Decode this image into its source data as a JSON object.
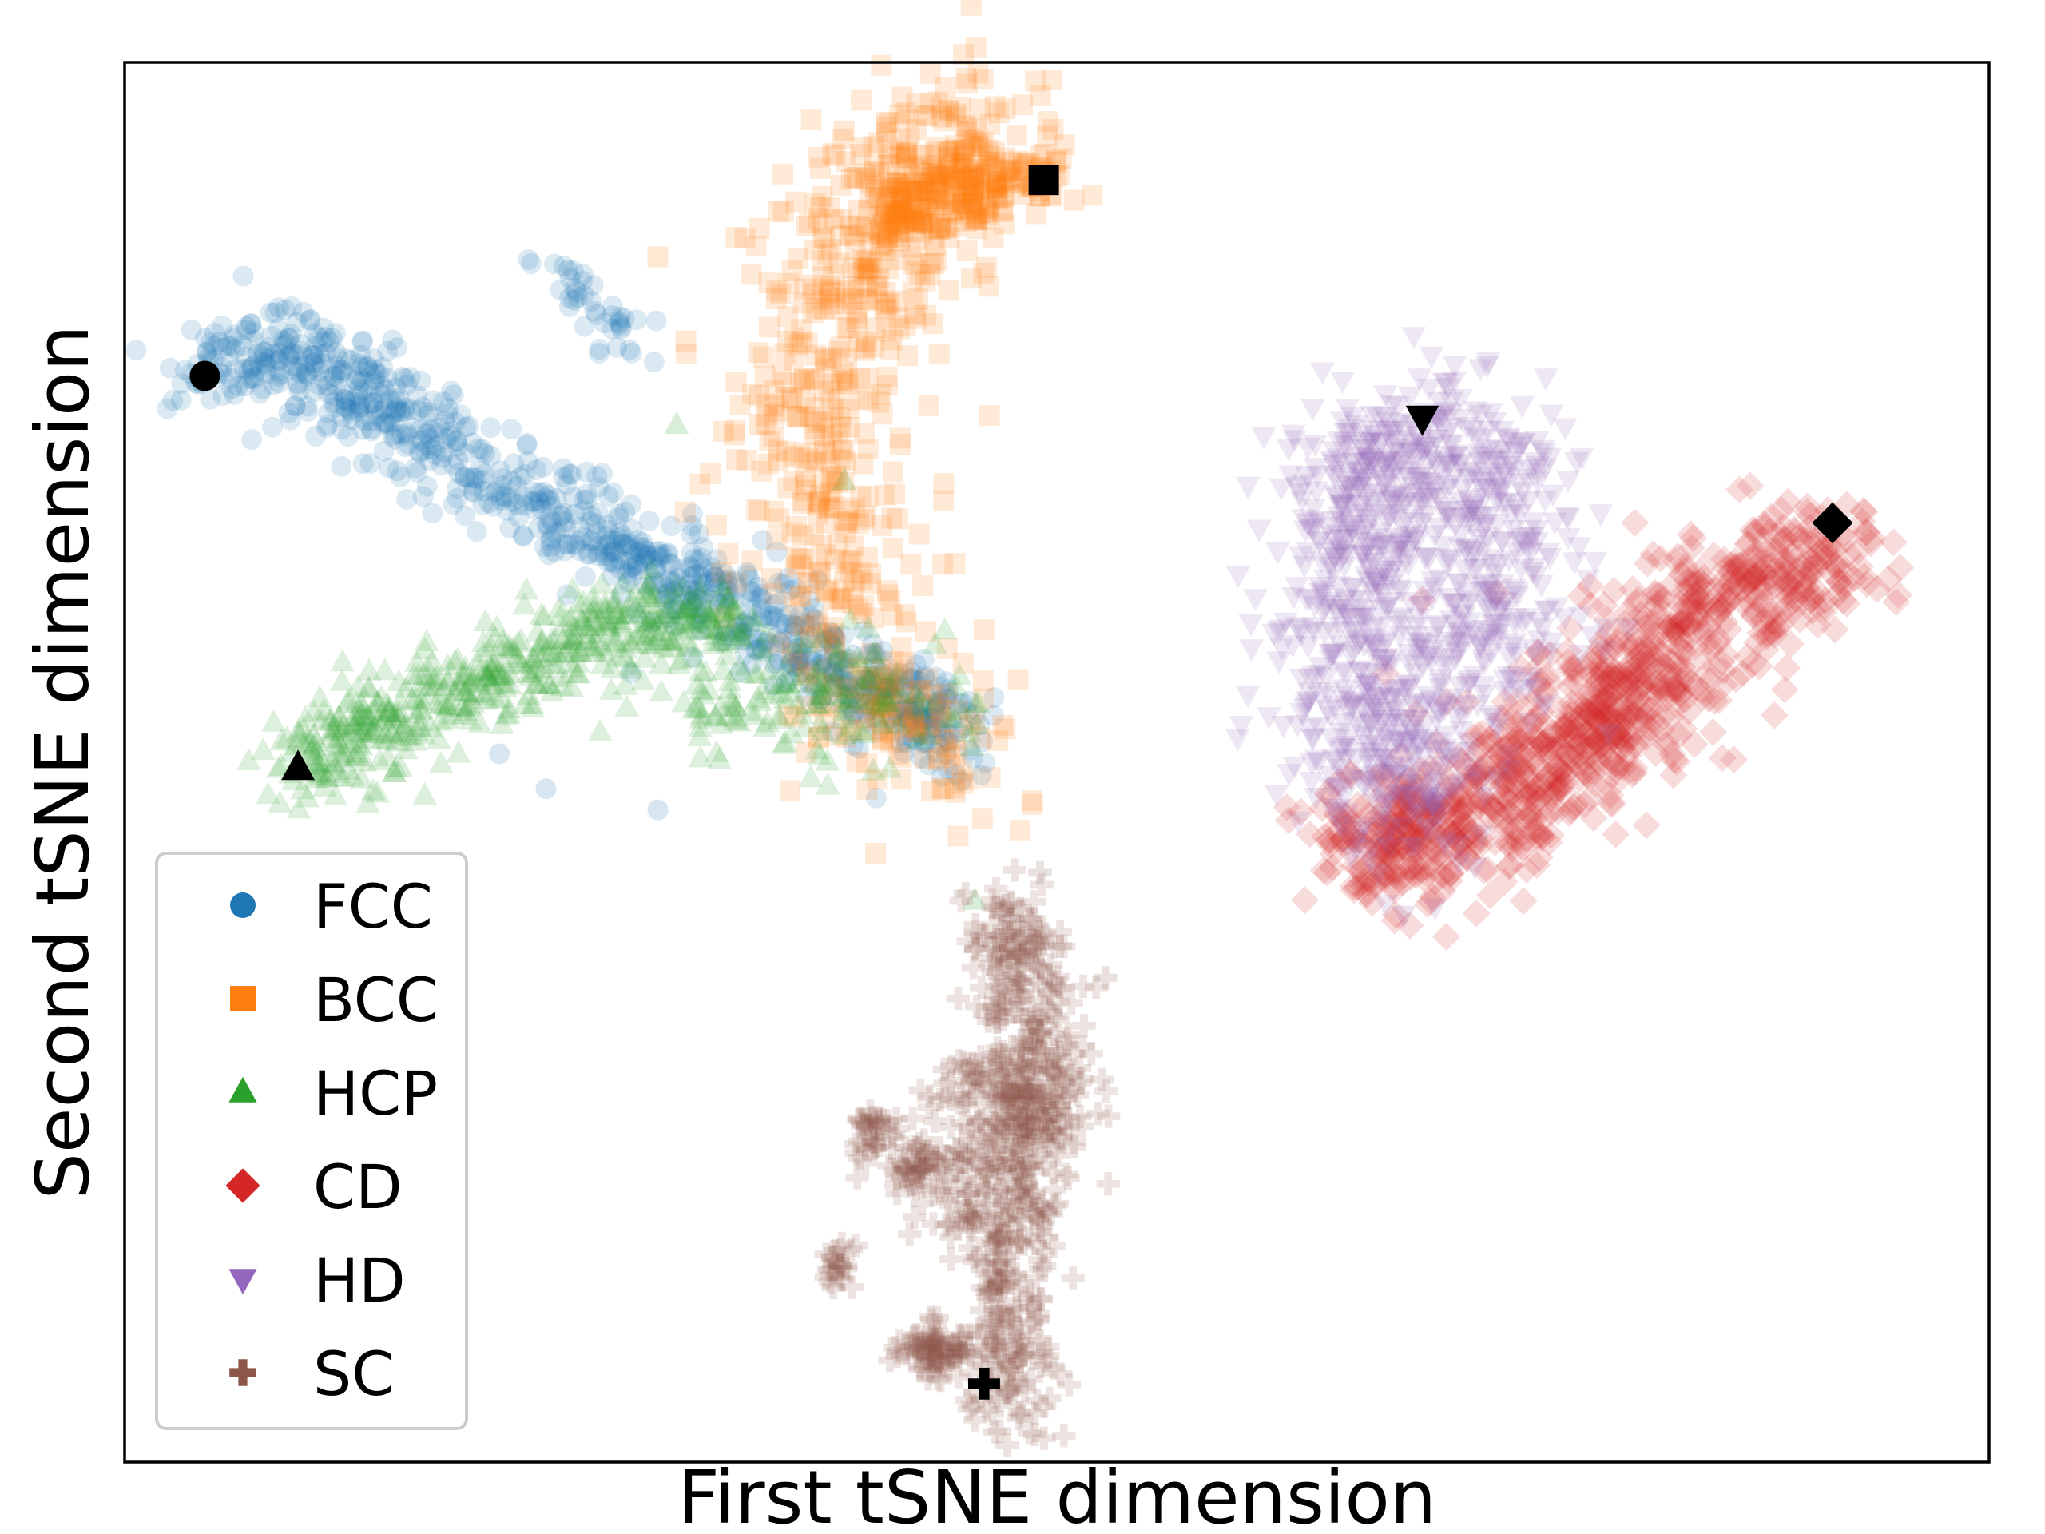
{
  "chart_data": {
    "type": "scatter",
    "title": "",
    "xlabel": "First tSNE dimension",
    "ylabel": "Second tSNE dimension",
    "xlim": [
      0,
      100
    ],
    "ylim": [
      0,
      100
    ],
    "x_ticks_visible": false,
    "y_ticks_visible": false,
    "grid": false,
    "legend_position": "lower-left",
    "series": [
      {
        "name": "FCC",
        "marker": "circle",
        "color": "#1f77b4",
        "clusters": [
          {
            "points": [
              [
                4.3,
                77.6
              ],
              [
                8.3,
                80.6
              ],
              [
                12.1,
                76.6
              ],
              [
                17.6,
                72.6
              ],
              [
                22.6,
                68.1
              ],
              [
                27.6,
                64.6
              ],
              [
                32.4,
                61.1
              ],
              [
                37.4,
                57.6
              ],
              [
                41.6,
                54.1
              ],
              [
                44.3,
                51.6
              ]
            ],
            "spread": 1.6,
            "count": 900
          },
          {
            "points": [
              [
                22.6,
                86.1
              ],
              [
                25.1,
                82.6
              ],
              [
                27.6,
                79.6
              ]
            ],
            "spread": 0.9,
            "count": 40
          }
        ],
        "outliers": [
          [
            22.6,
            48.1
          ],
          [
            20.1,
            50.6
          ],
          [
            28.6,
            46.6
          ]
        ],
        "anchor": [
          4.3,
          77.6
        ]
      },
      {
        "name": "BCC",
        "marker": "square",
        "color": "#ff7f0e",
        "clusters": [
          {
            "points": [
              [
                44.3,
                48.1
              ],
              [
                40.1,
                55.1
              ],
              [
                37.6,
                66.1
              ],
              [
                36.6,
                74.1
              ],
              [
                38.6,
                82.6
              ],
              [
                40.6,
                88.6
              ],
              [
                43.6,
                93.6
              ],
              [
                45.1,
                95.1
              ]
            ],
            "spread": 2.6,
            "count": 700
          },
          {
            "points": [
              [
                40.6,
                88.6
              ],
              [
                44.1,
                91.6
              ],
              [
                49.3,
                91.6
              ]
            ],
            "spread": 1.3,
            "count": 200
          }
        ],
        "outliers": [
          [
            38.6,
            95.1
          ],
          [
            28.6,
            86.1
          ],
          [
            30.1,
            80.1
          ],
          [
            42.6,
            55.1
          ]
        ],
        "anchor": [
          49.3,
          91.6
        ]
      },
      {
        "name": "HCP",
        "marker": "triangle-up",
        "color": "#2ca02c",
        "clusters": [
          {
            "points": [
              [
                9.3,
                49.6
              ],
              [
                13.6,
                52.6
              ],
              [
                20.1,
                56.1
              ],
              [
                26.6,
                60.1
              ],
              [
                32.6,
                59.6
              ]
            ],
            "spread": 1.6,
            "count": 500
          },
          {
            "points": [
              [
                30.1,
                54.6
              ],
              [
                36.6,
                54.1
              ],
              [
                42.6,
                55.1
              ]
            ],
            "spread": 2.4,
            "count": 160
          }
        ],
        "outliers": [
          [
            38.6,
            70.1
          ],
          [
            29.6,
            74.1
          ],
          [
            45.6,
            40.1
          ]
        ],
        "anchor": [
          9.3,
          49.6
        ]
      },
      {
        "name": "CD",
        "marker": "diamond",
        "color": "#d62728",
        "clusters": [
          {
            "points": [
              [
                66.6,
                43.6
              ],
              [
                68.6,
                44.6
              ],
              [
                72.6,
                46.6
              ],
              [
                77.6,
                51.1
              ],
              [
                81.1,
                56.1
              ],
              [
                84.6,
                61.1
              ],
              [
                88.6,
                63.6
              ],
              [
                91.6,
                65.1
              ]
            ],
            "spread": 2.3,
            "count": 900
          },
          {
            "points": [
              [
                74.1,
                50.1
              ],
              [
                78.6,
                52.1
              ],
              [
                83.6,
                56.1
              ]
            ],
            "spread": 2.8,
            "count": 150
          }
        ],
        "outliers": [
          [
            65.1,
            48.6
          ],
          [
            69.6,
            61.6
          ],
          [
            73.6,
            62.1
          ],
          [
            78.6,
            62.6
          ]
        ],
        "anchor": [
          91.6,
          67.1
        ]
      },
      {
        "name": "HD",
        "marker": "triangle-down",
        "color": "#9467bd",
        "clusters": [
          {
            "points": [
              [
                69.1,
                74.6
              ],
              [
                67.6,
                70.6
              ],
              [
                66.6,
                64.6
              ],
              [
                66.1,
                58.6
              ],
              [
                67.1,
                51.6
              ],
              [
                69.1,
                45.6
              ]
            ],
            "spread": 2.4,
            "count": 700
          },
          {
            "points": [
              [
                73.6,
                74.6
              ],
              [
                74.1,
                67.1
              ],
              [
                73.6,
                60.1
              ],
              [
                72.6,
                53.1
              ]
            ],
            "spread": 2.3,
            "count": 300
          }
        ],
        "outliers": [
          [
            66.1,
            44.6
          ],
          [
            68.6,
            39.1
          ],
          [
            79.6,
            52.1
          ]
        ],
        "anchor": [
          69.6,
          74.6
        ]
      },
      {
        "name": "SC",
        "marker": "plus",
        "color": "#8c564b",
        "clusters": [
          {
            "points": [
              [
                47.6,
                3.1
              ],
              [
                47.6,
                8.6
              ],
              [
                47.6,
                14.1
              ],
              [
                48.1,
                19.6
              ],
              [
                48.6,
                25.6
              ],
              [
                48.6,
                31.1
              ],
              [
                48.1,
                36.1
              ],
              [
                47.6,
                39.6
              ]
            ],
            "spread": 1.3,
            "count": 500
          },
          {
            "points": [
              [
                45.6,
                16.1
              ],
              [
                46.1,
                22.1
              ],
              [
                46.6,
                28.1
              ],
              [
                49.1,
                23.1
              ],
              [
                49.6,
                29.1
              ]
            ],
            "spread": 1.6,
            "count": 220
          },
          {
            "points": [
              [
                43.1,
                8.1
              ],
              [
                44.1,
                7.6
              ]
            ],
            "spread": 0.9,
            "count": 90
          },
          {
            "points": [
              [
                42.6,
                19.6
              ],
              [
                43.1,
                22.1
              ]
            ],
            "spread": 0.8,
            "count": 60
          },
          {
            "points": [
              [
                39.6,
                21.6
              ],
              [
                40.6,
                24.6
              ]
            ],
            "spread": 0.6,
            "count": 40
          },
          {
            "points": [
              [
                38.1,
                13.1
              ],
              [
                38.6,
                15.1
              ]
            ],
            "spread": 0.5,
            "count": 25
          }
        ],
        "outliers": [
          [
            52.6,
            34.6
          ],
          [
            45.1,
            40.6
          ],
          [
            49.1,
            42.1
          ]
        ],
        "anchor": [
          46.1,
          5.6
        ]
      }
    ]
  }
}
